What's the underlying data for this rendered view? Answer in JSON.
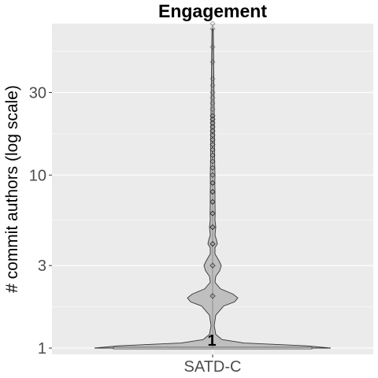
{
  "chart_data": {
    "type": "violin",
    "title": "Engagement",
    "xlabel": "",
    "ylabel": "# commit authors (log scale)",
    "y_scale": "log",
    "ylim": [
      0.92,
      75
    ],
    "y_ticks": [
      {
        "value": 1,
        "label": "1"
      },
      {
        "value": 3,
        "label": "3"
      },
      {
        "value": 10,
        "label": "10"
      },
      {
        "value": 30,
        "label": "30"
      }
    ],
    "categories": [
      "SATD-C"
    ],
    "median": {
      "value": 1,
      "label": "1"
    },
    "box": {
      "q1": 1,
      "median": 1,
      "q3": 1
    },
    "grid": true,
    "panel_background": "#ebebeb",
    "violin_fill": "#bfbfbf",
    "outlier_values": [
      2,
      3,
      4,
      4,
      5,
      5,
      6,
      6,
      7,
      7,
      8,
      8,
      9,
      9,
      10,
      11,
      12,
      13,
      14,
      15,
      16,
      17,
      18,
      19,
      20,
      21,
      22,
      24,
      26,
      28,
      30,
      33,
      36,
      45,
      55,
      70,
      75
    ]
  }
}
